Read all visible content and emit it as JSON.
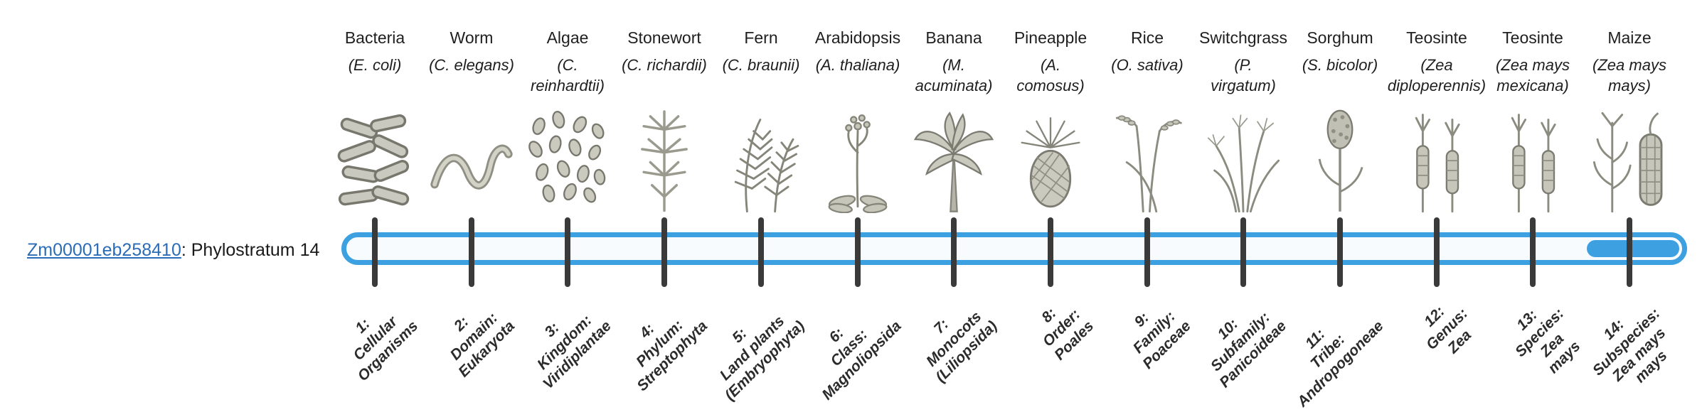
{
  "gene": {
    "id": "Zm00001eb258410",
    "suffix": ": Phylostratum 14"
  },
  "colors": {
    "bar_blue": "#3da0e0",
    "bar_background": "#f8fbfe",
    "tick": "#3a3a3a",
    "link": "#2b6cb8"
  },
  "organisms": [
    {
      "name": "Bacteria",
      "sci": "(E. coli)",
      "icon": "bacteria-icon"
    },
    {
      "name": "Worm",
      "sci": "(C. elegans)",
      "icon": "worm-icon"
    },
    {
      "name": "Algae",
      "sci": "(C.\nreinhardtii)",
      "icon": "algae-icon"
    },
    {
      "name": "Stonewort",
      "sci": "(C. richardii)",
      "icon": "stonewort-icon"
    },
    {
      "name": "Fern",
      "sci": "(C. braunii)",
      "icon": "fern-icon"
    },
    {
      "name": "Arabidopsis",
      "sci": "(A. thaliana)",
      "icon": "arabidopsis-icon"
    },
    {
      "name": "Banana",
      "sci": "(M.\nacuminata)",
      "icon": "banana-icon"
    },
    {
      "name": "Pineapple",
      "sci": "(A.\ncomosus)",
      "icon": "pineapple-icon"
    },
    {
      "name": "Rice",
      "sci": "(O. sativa)",
      "icon": "rice-icon"
    },
    {
      "name": "Switchgrass",
      "sci": "(P.\nvirgatum)",
      "icon": "switchgrass-icon"
    },
    {
      "name": "Sorghum",
      "sci": "(S. bicolor)",
      "icon": "sorghum-icon"
    },
    {
      "name": "Teosinte",
      "sci": "(Zea\ndiploperennis)",
      "icon": "teosinte-icon"
    },
    {
      "name": "Teosinte",
      "sci": "(Zea mays\nmexicana)",
      "icon": "teosinte-icon"
    },
    {
      "name": "Maize",
      "sci": "(Zea mays\nmays)",
      "icon": "maize-icon"
    }
  ],
  "phylostrata": [
    {
      "num": 1,
      "label": "1:\nCellular\nOrganisms"
    },
    {
      "num": 2,
      "label": "2:\nDomain:\nEukaryota"
    },
    {
      "num": 3,
      "label": "3:\nKingdom:\nViridiplantae"
    },
    {
      "num": 4,
      "label": "4:\nPhylum:\nStreptophyta"
    },
    {
      "num": 5,
      "label": "5:\nLand plants\n(Embryophyta)"
    },
    {
      "num": 6,
      "label": "6:\nClass:\nMagnoliopsida"
    },
    {
      "num": 7,
      "label": "7:\nMonocots\n(Liliopsida)"
    },
    {
      "num": 8,
      "label": "8:\nOrder:\nPoales"
    },
    {
      "num": 9,
      "label": "9:\nFamily:\nPoaceae"
    },
    {
      "num": 10,
      "label": "10:\nSubfamily:\nPanicoideae"
    },
    {
      "num": 11,
      "label": "11:\nTribe:\nAndropogoneae"
    },
    {
      "num": 12,
      "label": "12:\nGenus:\nZea"
    },
    {
      "num": 13,
      "label": "13:\nSpecies:\nZea\nmays"
    },
    {
      "num": 14,
      "label": "14:\nSubspecies:\nZea mays\nmays"
    }
  ]
}
